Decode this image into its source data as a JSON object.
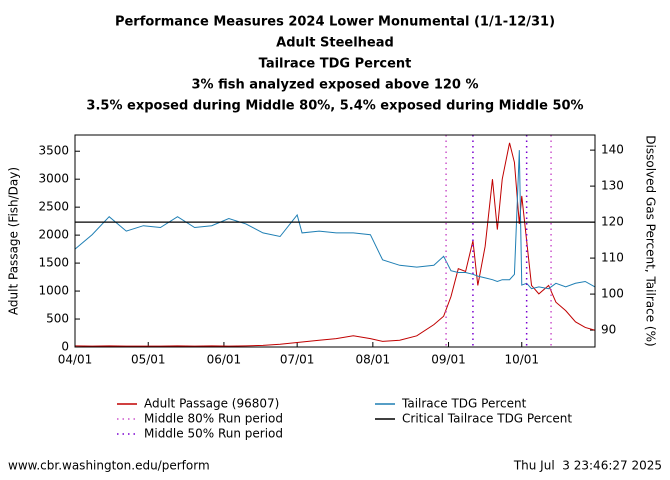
{
  "chart_data": {
    "type": "line",
    "title": "Performance Measures 2024 Lower Monumental (1/1-12/31)",
    "subtitles": [
      "Adult Steelhead",
      "Tailrace TDG Percent",
      "3% fish analyzed exposed above 120 %",
      "3.5% exposed during Middle 80%, 5.4% exposed during Middle 50%"
    ],
    "y_label": "Adult Passage (Fish/Day)",
    "y2_label": "Dissolved Gas Percent, Tailrace (%)",
    "x": [
      "04/01",
      "04/08",
      "04/15",
      "04/22",
      "04/29",
      "05/06",
      "05/13",
      "05/20",
      "05/27",
      "06/03",
      "06/10",
      "06/17",
      "06/24",
      "07/01",
      "07/03",
      "07/10",
      "07/17",
      "07/24",
      "07/31",
      "08/05",
      "08/12",
      "08/19",
      "08/26",
      "08/30",
      "09/02",
      "09/05",
      "09/08",
      "09/11",
      "09/13",
      "09/16",
      "09/19",
      "09/21",
      "09/23",
      "09/26",
      "09/28",
      "09/30",
      "10/01",
      "10/03",
      "10/05",
      "10/08",
      "10/12",
      "10/15",
      "10/19",
      "10/23",
      "10/27",
      "10/31"
    ],
    "xlim": [
      "04/01",
      "10/31"
    ],
    "xticks": [
      "04/01",
      "05/01",
      "06/01",
      "07/01",
      "08/01",
      "09/01",
      "10/01"
    ],
    "ylim": [
      0,
      3790
    ],
    "yticks": [
      0,
      500,
      1000,
      1500,
      2000,
      2500,
      3000,
      3500
    ],
    "y2lim": [
      85.3,
      144.2
    ],
    "y2ticks": [
      90,
      100,
      110,
      120,
      130,
      140
    ],
    "series": [
      {
        "name": "Adult Passage (96807)",
        "color": "#c00000",
        "values": [
          20,
          15,
          20,
          15,
          15,
          15,
          20,
          15,
          20,
          15,
          20,
          30,
          50,
          80,
          90,
          120,
          150,
          200,
          150,
          100,
          120,
          200,
          400,
          550,
          900,
          1400,
          1350,
          1900,
          1100,
          1800,
          3000,
          2100,
          3000,
          3650,
          3300,
          2200,
          2700,
          1900,
          1100,
          950,
          1100,
          800,
          650,
          450,
          350,
          300
        ]
      },
      {
        "name": "Tailrace TDG Percent",
        "color": "#1f7fb4",
        "axis": "y2",
        "values": [
          112.5,
          116.5,
          121.5,
          117.5,
          119,
          118.5,
          121.5,
          118.5,
          119,
          121,
          119.5,
          117,
          116,
          122,
          117,
          117.5,
          117,
          117,
          116.5,
          109.5,
          108,
          107.5,
          108,
          110.5,
          106.5,
          106,
          106,
          105.5,
          105,
          104.5,
          104,
          103.5,
          104,
          104,
          105.5,
          140,
          102.5,
          103,
          101.5,
          102,
          101.5,
          103,
          102,
          103,
          103.5,
          102
        ]
      }
    ],
    "reference_lines": [
      {
        "name": "Critical Tailrace TDG Percent",
        "color": "#000000",
        "value": 120,
        "axis": "y2"
      }
    ],
    "run_periods": [
      {
        "name": "Middle 80% Run period",
        "color": "#cc55cc",
        "start": "08/31",
        "end": "10/13"
      },
      {
        "name": "Middle 50% Run period",
        "color": "#7a00d0",
        "start": "09/11",
        "end": "10/03"
      }
    ],
    "footer_left": "www.cbr.washington.edu/perform",
    "footer_right": "Thu Jul  3 23:46:27 2025"
  }
}
